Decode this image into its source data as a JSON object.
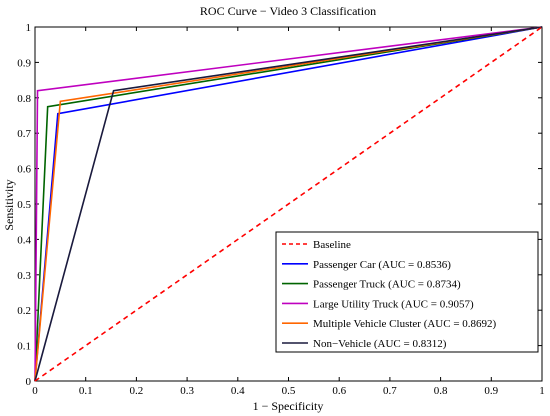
{
  "chart_data": {
    "type": "line",
    "title": "ROC Curve − Video 3 Classification",
    "xlabel": "1 − Specificity",
    "ylabel": "Sensitivity",
    "xlim": [
      0,
      1
    ],
    "ylim": [
      0,
      1
    ],
    "xticks": [
      "0",
      "0.1",
      "0.2",
      "0.3",
      "0.4",
      "0.5",
      "0.6",
      "0.7",
      "0.8",
      "0.9",
      "1"
    ],
    "yticks": [
      "0",
      "0.1",
      "0.2",
      "0.3",
      "0.4",
      "0.5",
      "0.6",
      "0.7",
      "0.8",
      "0.9",
      "1"
    ],
    "grid": false,
    "legend_position": "bottom-right",
    "series": [
      {
        "name": "Baseline",
        "color": "#ff0000",
        "dash": true,
        "x": [
          0,
          1
        ],
        "y": [
          0,
          1
        ]
      },
      {
        "name": "Passenger Car (AUC = 0.8536)",
        "color": "#0000ff",
        "dash": false,
        "x": [
          0,
          0.045,
          1
        ],
        "y": [
          0,
          0.755,
          1
        ]
      },
      {
        "name": "Passenger Truck (AUC = 0.8734)",
        "color": "#006400",
        "dash": false,
        "x": [
          0,
          0.025,
          1
        ],
        "y": [
          0,
          0.775,
          1
        ]
      },
      {
        "name": "Large Utility Truck (AUC = 0.9057)",
        "color": "#bf00bf",
        "dash": false,
        "x": [
          0,
          0.005,
          1
        ],
        "y": [
          0,
          0.82,
          1
        ]
      },
      {
        "name": "Multiple Vehicle Cluster (AUC = 0.8692)",
        "color": "#ff6600",
        "dash": false,
        "x": [
          0,
          0.05,
          1
        ],
        "y": [
          0,
          0.79,
          1
        ]
      },
      {
        "name": "Non−Vehicle (AUC = 0.8312)",
        "color": "#1a1a3d",
        "dash": false,
        "x": [
          0,
          0.155,
          1
        ],
        "y": [
          0,
          0.82,
          1
        ]
      }
    ]
  }
}
